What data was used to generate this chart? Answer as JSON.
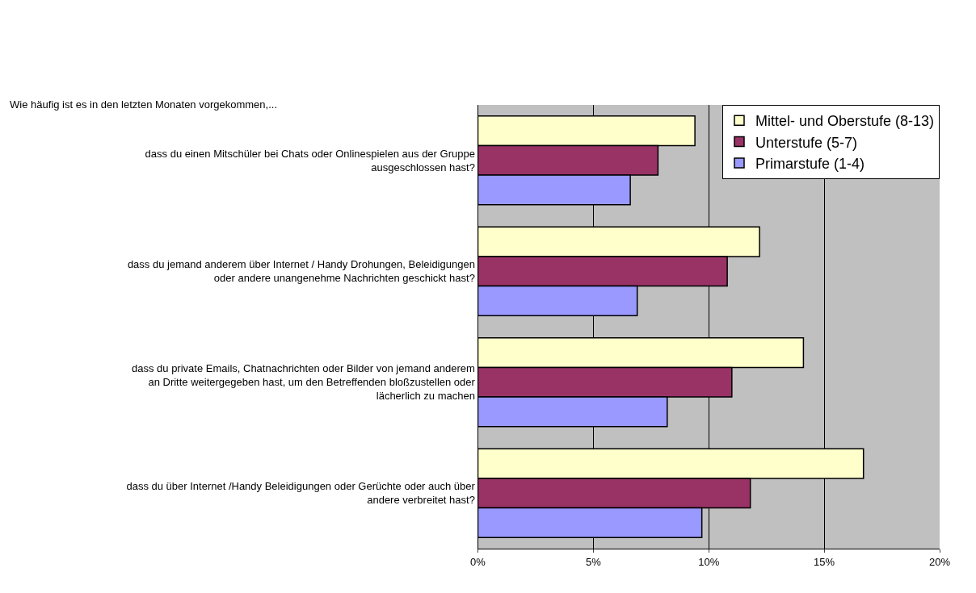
{
  "chart_data": {
    "type": "bar",
    "orientation": "horizontal",
    "title": "Wie häufig ist es in den letzten Monaten vorgekommen,...",
    "categories": [
      "dass du einen Mitschüler bei Chats oder Onlinespielen aus der Gruppe ausgeschlossen hast?",
      "dass du jemand anderem über Internet / Handy Drohungen, Beleidigungen oder andere unangenehme Nachrichten geschickt hast?",
      "dass du private Emails, Chatnachrichten oder Bilder von jemand anderem an Dritte weitergegeben hast, um den Betreffenden bloßzustellen oder lächerlich zu machen",
      "dass du über Internet /Handy Beleidigungen oder Gerüchte oder auch über andere verbreitet hast?"
    ],
    "series": [
      {
        "name": "Mittel- und Oberstufe (8-13)",
        "color": "#ffffcc",
        "values": [
          9.4,
          12.2,
          14.1,
          16.7
        ]
      },
      {
        "name": "Unterstufe (5-7)",
        "color": "#993366",
        "values": [
          7.8,
          10.8,
          11.0,
          11.8
        ]
      },
      {
        "name": "Primarstufe (1-4)",
        "color": "#9999ff",
        "values": [
          6.6,
          6.9,
          8.2,
          9.7
        ]
      }
    ],
    "xlim": [
      0,
      20
    ],
    "xticks": [
      {
        "value": 0,
        "label": "0%"
      },
      {
        "value": 5,
        "label": "5%"
      },
      {
        "value": 10,
        "label": "10%"
      },
      {
        "value": 15,
        "label": "15%"
      },
      {
        "value": 20,
        "label": "20%"
      }
    ],
    "grid": "x",
    "legend": "top right"
  }
}
